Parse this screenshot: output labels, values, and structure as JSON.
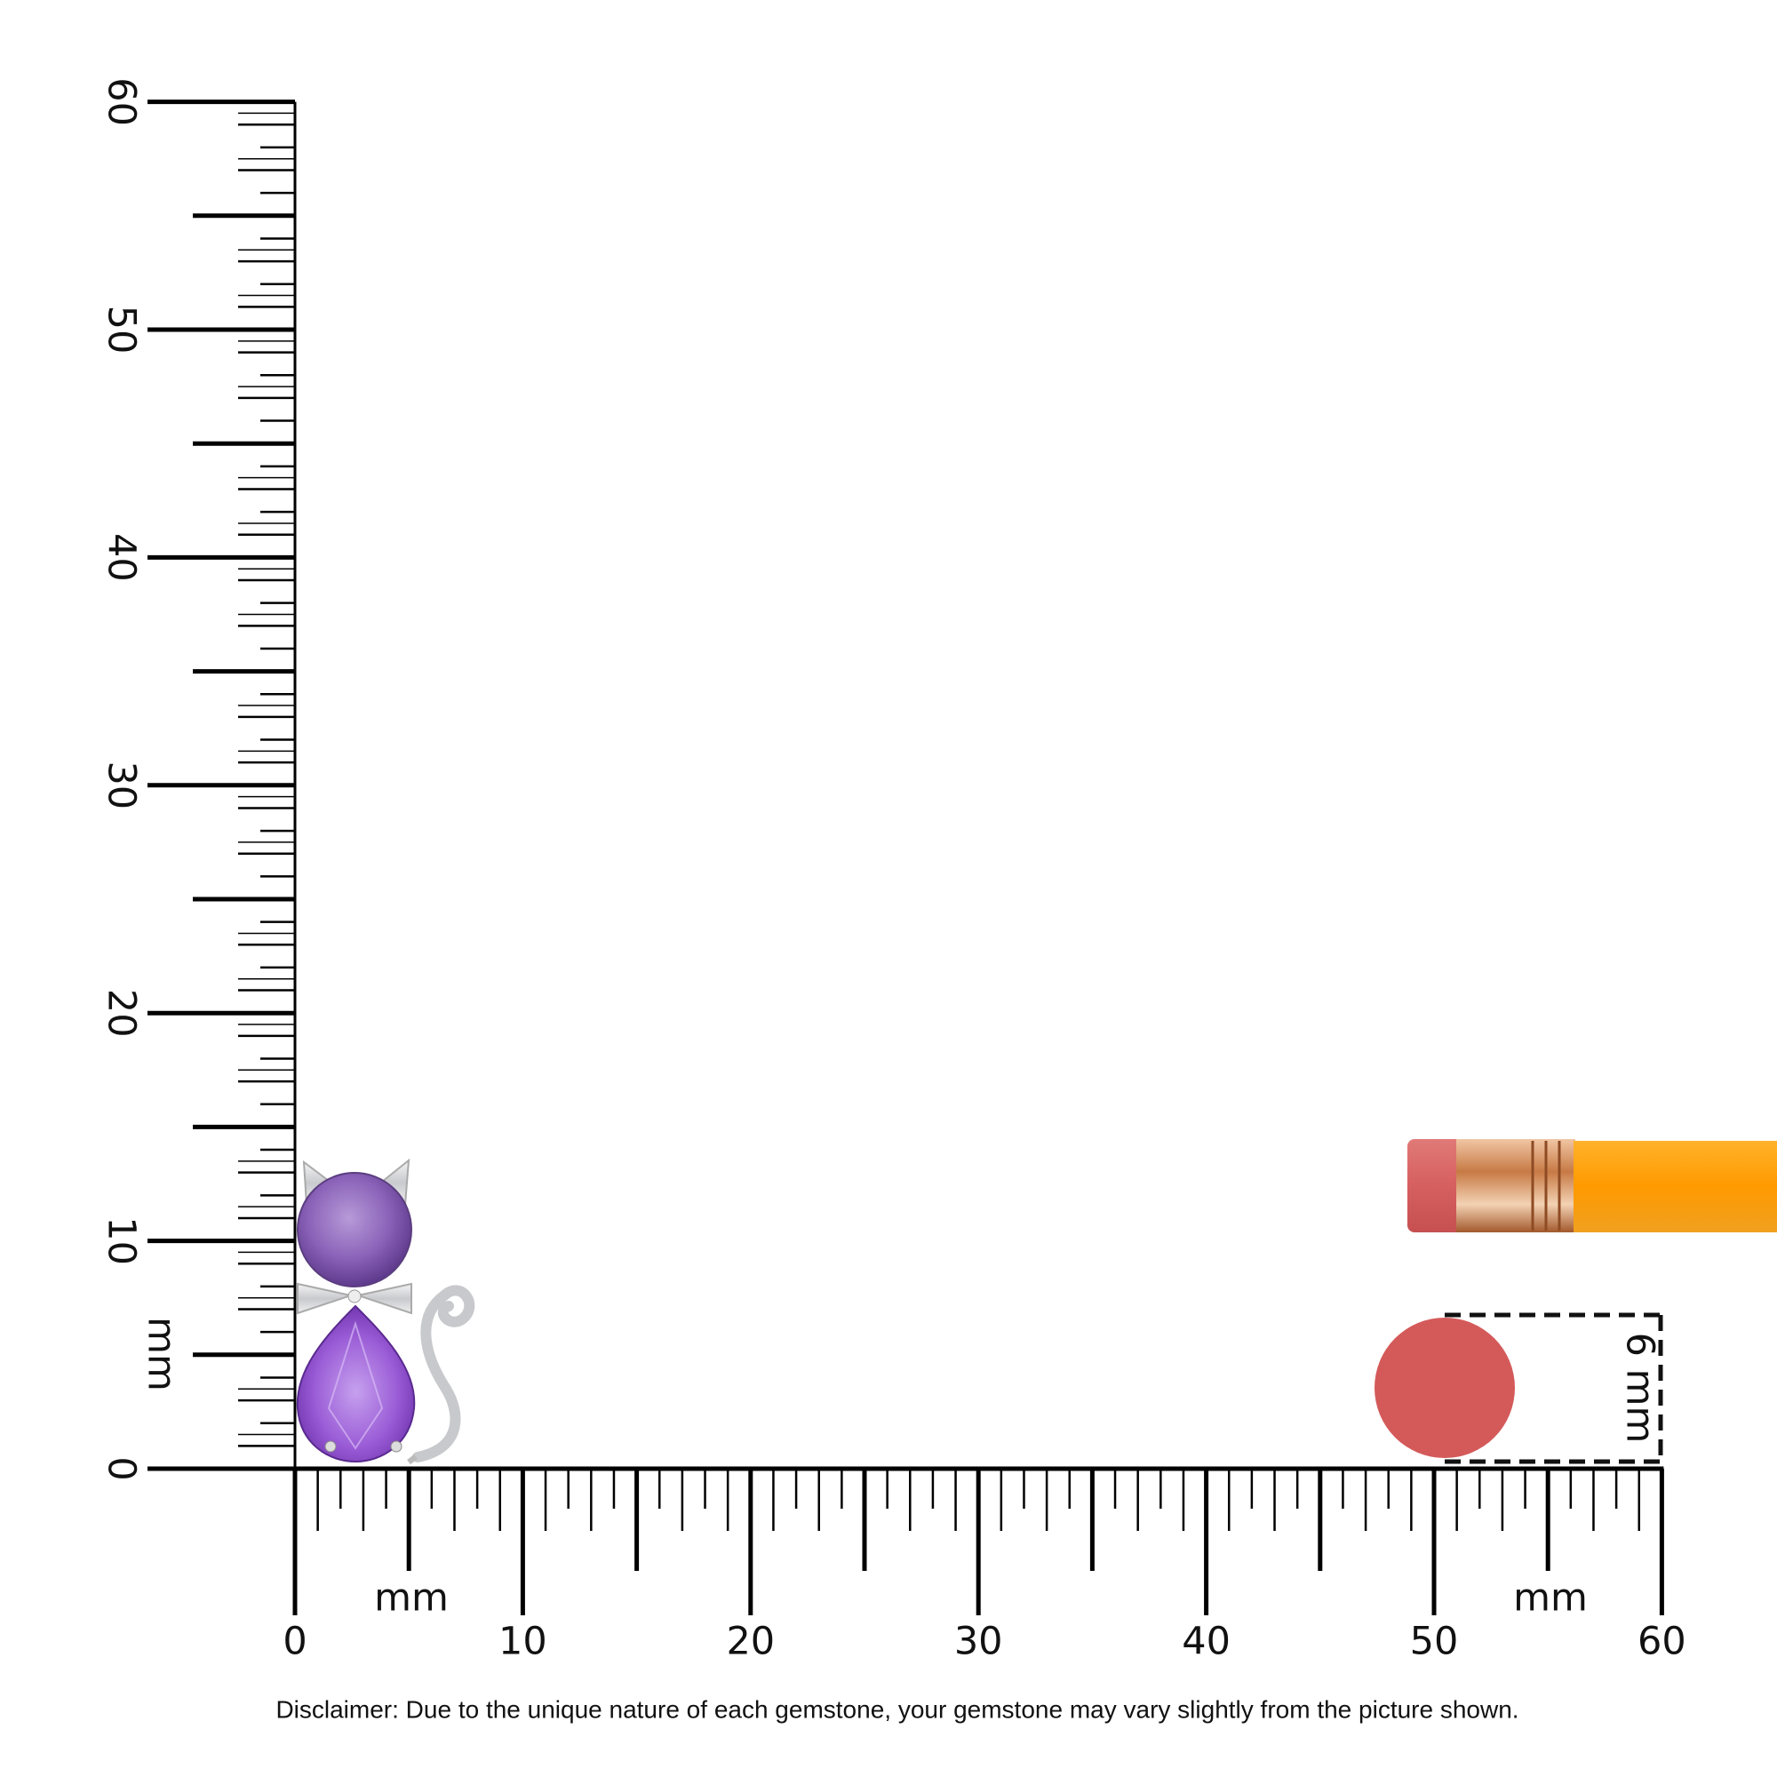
{
  "x_ruler": {
    "labels": [
      "0",
      "10",
      "20",
      "30",
      "40",
      "50",
      "60"
    ],
    "unit": "mm",
    "unit_right": "mm"
  },
  "y_ruler": {
    "labels": [
      "0",
      "10",
      "20",
      "30",
      "40",
      "50",
      "60"
    ],
    "unit": "mm"
  },
  "eraser": {
    "label": "6 mm"
  },
  "disclaimer": "Disclaimer: Due to the unique nature of each gemstone, your gemstone may vary slightly from the picture shown."
}
